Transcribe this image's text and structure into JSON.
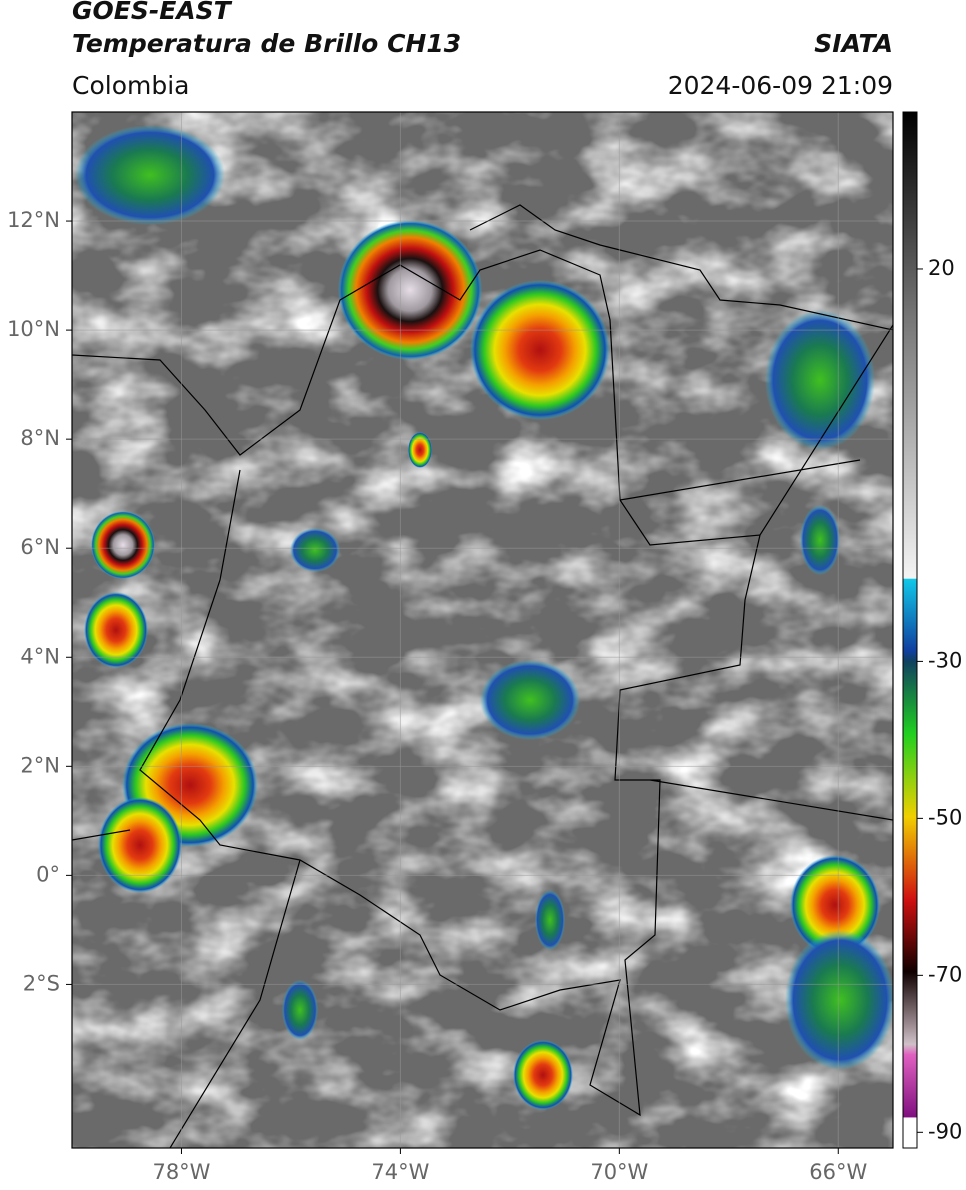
{
  "header": {
    "title": "GOES-EAST",
    "subtitle": "Temperatura de Brillo CH13",
    "source": "SIATA",
    "region": "Colombia",
    "datetime": "2024-06-09 21:09"
  },
  "map": {
    "xlim": [
      -80,
      -65
    ],
    "ylim": [
      -5,
      14
    ],
    "xticks": [
      {
        "value": -78,
        "label": "78°W"
      },
      {
        "value": -74,
        "label": "74°W"
      },
      {
        "value": -70,
        "label": "70°W"
      },
      {
        "value": -66,
        "label": "66°W"
      }
    ],
    "yticks": [
      {
        "value": 12,
        "label": "12°N"
      },
      {
        "value": 10,
        "label": "10°N"
      },
      {
        "value": 8,
        "label": "8°N"
      },
      {
        "value": 6,
        "label": "6°N"
      },
      {
        "value": 4,
        "label": "4°N"
      },
      {
        "value": 2,
        "label": "2°N"
      },
      {
        "value": 0,
        "label": "0°"
      },
      {
        "value": -2,
        "label": "2°S"
      }
    ]
  },
  "colorbar": {
    "lim": [
      -92,
      40
    ],
    "ticks": [
      20,
      -30,
      -50,
      -70,
      -90
    ]
  }
}
